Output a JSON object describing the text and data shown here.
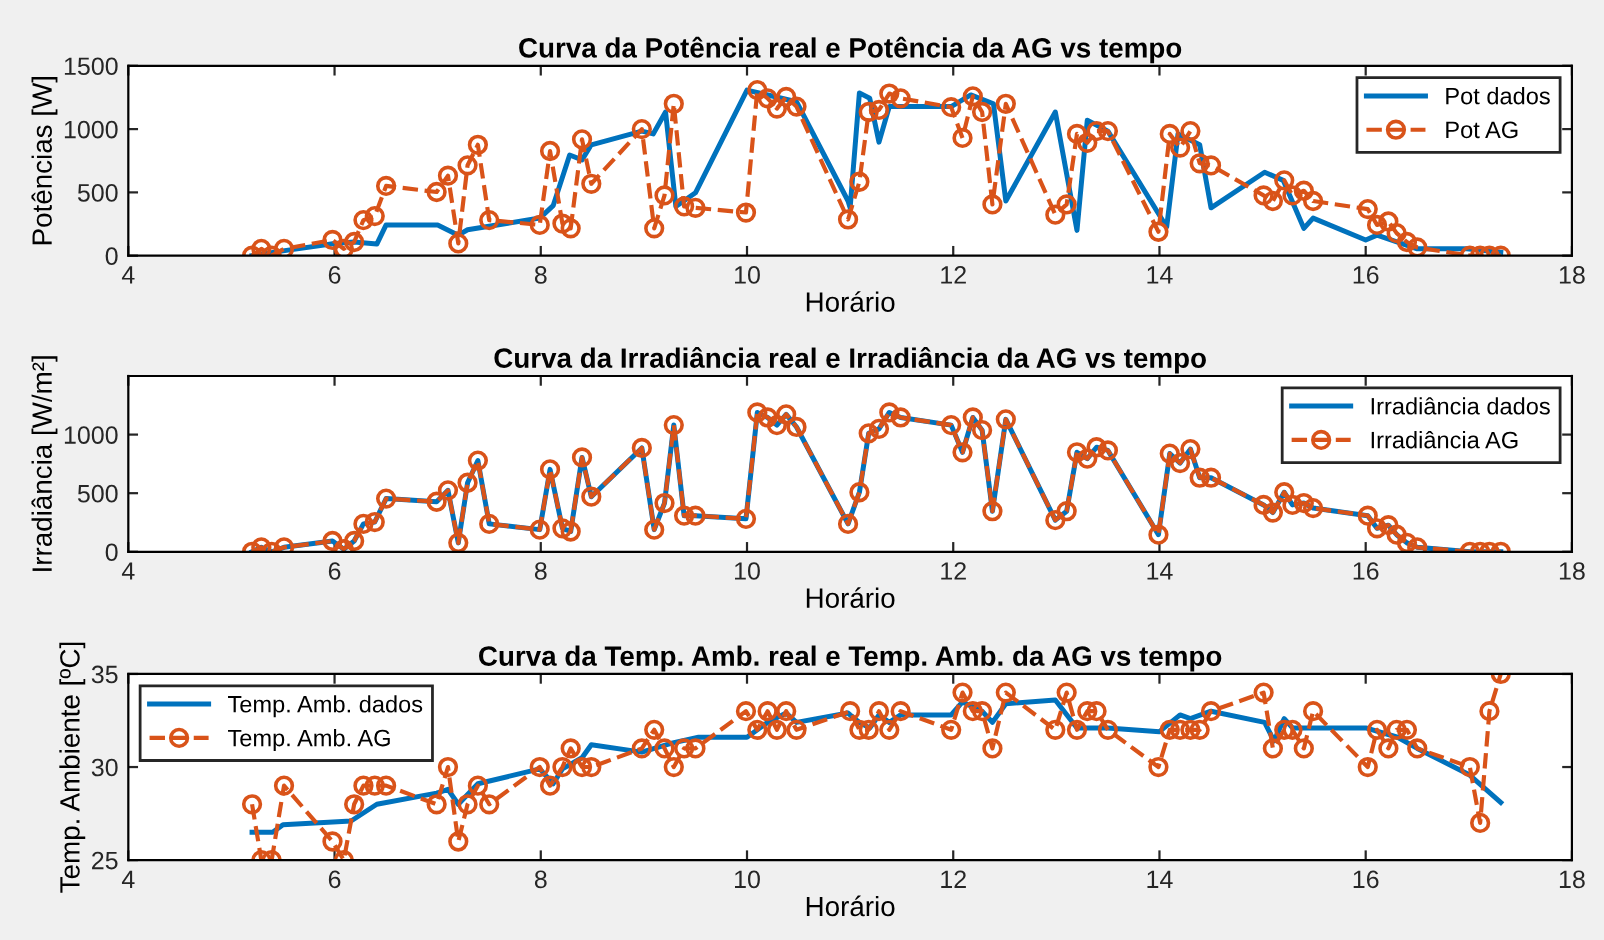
{
  "chart_data": [
    {
      "type": "line",
      "title": "Curva da Potência real e Potência da AG vs tempo",
      "xlabel": "Horário",
      "ylabel": "Potências [W]",
      "xlim": [
        4,
        18
      ],
      "xticks": [
        4,
        6,
        8,
        10,
        12,
        14,
        16,
        18
      ],
      "ylim": [
        0,
        1500
      ],
      "yticks": [
        0,
        500,
        1000,
        1500
      ],
      "grid": false,
      "legend": "top right",
      "series": [
        {
          "name": "Pot dados",
          "color": "#0072bd",
          "line_style": "solid",
          "marker": "none",
          "x": [
            5.2,
            5.5,
            6.0,
            6.19,
            6.41,
            6.5,
            7.0,
            7.2,
            7.29,
            7.99,
            8.12,
            8.28,
            8.4,
            8.49,
            8.98,
            9.09,
            9.21,
            9.31,
            9.5,
            10.0,
            10.48,
            10.98,
            11.0,
            11.09,
            11.19,
            11.28,
            11.38,
            11.98,
            12.17,
            12.39,
            12.51,
            12.99,
            13.2,
            13.3,
            13.5,
            14.07,
            14.18,
            14.39,
            14.5,
            15.02,
            15.2,
            15.4,
            15.49,
            16.0,
            16.11,
            16.5,
            16.98,
            17.31
          ],
          "values": [
            0,
            38,
            97,
            108,
            92,
            243,
            243,
            162,
            205,
            297,
            395,
            795,
            757,
            876,
            984,
            962,
            1135,
            389,
            497,
            1308,
            1216,
            432,
            378,
            1286,
            1243,
            897,
            1178,
            1178,
            1270,
            1200,
            432,
            1135,
            200,
            1070,
            984,
            227,
            962,
            876,
            378,
            659,
            595,
            216,
            297,
            124,
            162,
            54,
            54,
            27
          ]
        },
        {
          "name": "Pot AG",
          "color": "#d95319",
          "line_style": "dashed",
          "marker": "circle",
          "x": [
            5.2,
            5.29,
            5.39,
            5.51,
            5.98,
            6.09,
            6.19,
            6.28,
            6.39,
            6.5,
            6.99,
            7.1,
            7.2,
            7.29,
            7.39,
            7.5,
            7.99,
            8.09,
            8.21,
            8.29,
            8.4,
            8.49,
            8.98,
            9.1,
            9.2,
            9.29,
            9.39,
            9.5,
            9.99,
            10.1,
            10.2,
            10.29,
            10.38,
            10.48,
            10.98,
            11.09,
            11.18,
            11.28,
            11.38,
            11.49,
            11.98,
            12.09,
            12.19,
            12.28,
            12.38,
            12.51,
            12.99,
            13.1,
            13.2,
            13.3,
            13.39,
            13.5,
            13.99,
            14.1,
            14.2,
            14.3,
            14.39,
            14.5,
            15.01,
            15.1,
            15.21,
            15.29,
            15.4,
            15.49,
            16.02,
            16.11,
            16.22,
            16.3,
            16.4,
            16.5,
            17.01,
            17.11,
            17.2,
            17.31
          ],
          "values": [
            0,
            54,
            0,
            54,
            124,
            54,
            108,
            281,
            313,
            551,
            503,
            632,
            97,
            714,
            876,
            281,
            243,
            827,
            254,
            216,
            919,
            568,
            1000,
            216,
            476,
            1200,
            389,
            378,
            341,
            1308,
            1243,
            1162,
            1254,
            1178,
            286,
            584,
            1135,
            1151,
            1281,
            1243,
            1173,
            930,
            1259,
            1135,
            405,
            1200,
            324,
            405,
            962,
            892,
            984,
            984,
            189,
            962,
            854,
            984,
            730,
            713,
            476,
            432,
            595,
            476,
            513,
            432,
            368,
            243,
            270,
            178,
            108,
            65,
            0,
            0,
            0,
            0
          ]
        }
      ]
    },
    {
      "type": "line",
      "title": "Curva da Irradiância real e Irradiância da AG vs tempo",
      "xlabel": "Horário",
      "ylabel": "Irradiância [W/m²]",
      "xlim": [
        4,
        18
      ],
      "xticks": [
        4,
        6,
        8,
        10,
        12,
        14,
        16,
        18
      ],
      "ylim": [
        0,
        1500
      ],
      "yticks": [
        0,
        500,
        1000
      ],
      "grid": false,
      "legend": "top right",
      "series": [
        {
          "name": "Irradiância dados",
          "color": "#0072bd",
          "line_style": "solid",
          "marker": "none",
          "x": [
            5.2,
            5.29,
            5.39,
            5.51,
            5.98,
            6.09,
            6.19,
            6.28,
            6.39,
            6.5,
            6.99,
            7.1,
            7.2,
            7.29,
            7.39,
            7.5,
            7.99,
            8.09,
            8.21,
            8.29,
            8.4,
            8.49,
            8.98,
            9.1,
            9.2,
            9.29,
            9.39,
            9.5,
            9.99,
            10.1,
            10.2,
            10.29,
            10.38,
            10.48,
            10.98,
            11.09,
            11.18,
            11.28,
            11.38,
            11.49,
            11.98,
            12.09,
            12.19,
            12.28,
            12.38,
            12.51,
            12.99,
            13.1,
            13.2,
            13.3,
            13.39,
            13.5,
            13.99,
            14.1,
            14.2,
            14.3,
            14.39,
            14.5,
            15.01,
            15.1,
            15.21,
            15.29,
            15.4,
            15.49,
            16.02,
            16.11,
            16.22,
            16.3,
            16.4,
            16.5,
            17.01,
            17.11,
            17.2,
            17.31
          ],
          "values": [
            0,
            38,
            0,
            38,
            92,
            22,
            92,
            238,
            254,
            454,
            427,
            524,
            76,
            589,
            778,
            238,
            189,
            703,
            200,
            173,
            805,
            470,
            886,
            189,
            416,
            1081,
            308,
            308,
            281,
            1189,
            1146,
            1081,
            1173,
            1065,
            238,
            508,
            1011,
            1049,
            1189,
            1146,
            1081,
            849,
            1146,
            1038,
            346,
            1130,
            270,
            346,
            849,
            795,
            892,
            865,
            146,
            838,
            757,
            876,
            632,
            632,
            400,
            335,
            508,
            400,
            416,
            373,
            308,
            200,
            227,
            146,
            76,
            38,
            0,
            0,
            0,
            0
          ]
        },
        {
          "name": "Irradiância AG",
          "color": "#d95319",
          "line_style": "dashed",
          "marker": "circle",
          "x": [
            5.2,
            5.29,
            5.39,
            5.51,
            5.98,
            6.09,
            6.19,
            6.28,
            6.39,
            6.5,
            6.99,
            7.1,
            7.2,
            7.29,
            7.39,
            7.5,
            7.99,
            8.09,
            8.21,
            8.29,
            8.4,
            8.49,
            8.98,
            9.1,
            9.2,
            9.29,
            9.39,
            9.5,
            9.99,
            10.1,
            10.2,
            10.29,
            10.38,
            10.48,
            10.98,
            11.09,
            11.18,
            11.28,
            11.38,
            11.49,
            11.98,
            12.09,
            12.19,
            12.28,
            12.38,
            12.51,
            12.99,
            13.1,
            13.2,
            13.3,
            13.39,
            13.5,
            13.99,
            14.1,
            14.2,
            14.3,
            14.39,
            14.5,
            15.01,
            15.1,
            15.21,
            15.29,
            15.4,
            15.49,
            16.02,
            16.11,
            16.22,
            16.3,
            16.4,
            16.5,
            17.01,
            17.11,
            17.2,
            17.31
          ],
          "values": [
            0,
            38,
            0,
            38,
            92,
            22,
            92,
            238,
            254,
            454,
            427,
            524,
            76,
            589,
            778,
            238,
            189,
            703,
            200,
            173,
            805,
            470,
            886,
            189,
            416,
            1081,
            308,
            308,
            281,
            1189,
            1146,
            1081,
            1173,
            1065,
            238,
            508,
            1011,
            1049,
            1189,
            1146,
            1081,
            849,
            1146,
            1038,
            346,
            1130,
            270,
            346,
            849,
            795,
            892,
            865,
            146,
            838,
            757,
            876,
            632,
            632,
            400,
            335,
            508,
            400,
            416,
            373,
            308,
            200,
            227,
            146,
            76,
            38,
            0,
            0,
            0,
            0
          ]
        }
      ]
    },
    {
      "type": "line",
      "title": "Curva da Temp. Amb. real e Temp. Amb. da AG vs tempo",
      "xlabel": "Horário",
      "ylabel": "Temp. Ambiente [ºC]",
      "xlim": [
        4,
        18
      ],
      "xticks": [
        4,
        6,
        8,
        10,
        12,
        14,
        16,
        18
      ],
      "ylim": [
        25,
        35
      ],
      "yticks": [
        25,
        30,
        35
      ],
      "grid": false,
      "legend": "top left",
      "series": [
        {
          "name": "Temp. Amb. dados",
          "color": "#0072bd",
          "line_style": "solid",
          "marker": "none",
          "x": [
            5.2,
            5.4,
            5.5,
            6.16,
            6.41,
            6.99,
            7.1,
            7.2,
            7.39,
            7.99,
            8.12,
            8.21,
            8.4,
            8.49,
            8.98,
            9.28,
            9.53,
            10.0,
            10.2,
            10.38,
            10.48,
            10.98,
            11.0,
            11.09,
            11.19,
            11.28,
            11.38,
            11.49,
            11.98,
            12.09,
            12.28,
            12.38,
            12.51,
            12.99,
            13.2,
            13.5,
            14.0,
            14.2,
            14.3,
            14.5,
            15.02,
            15.11,
            15.21,
            15.29,
            16.0,
            16.31,
            16.5,
            17.0,
            17.31
          ],
          "values": [
            26.5,
            26.5,
            26.9,
            27.1,
            28.0,
            28.6,
            28.8,
            28.0,
            29.1,
            29.9,
            29.1,
            29.9,
            30.5,
            31.2,
            30.8,
            31.3,
            31.6,
            31.6,
            32.4,
            32.9,
            32.4,
            32.9,
            32.8,
            32.4,
            32.1,
            32.8,
            32.4,
            32.8,
            32.8,
            33.5,
            33.0,
            32.4,
            33.4,
            33.6,
            32.1,
            32.1,
            31.9,
            32.8,
            32.6,
            33.0,
            32.4,
            31.4,
            32.6,
            32.1,
            32.1,
            31.6,
            31.0,
            29.6,
            28.1
          ]
        },
        {
          "name": "Temp. Amb. AG",
          "color": "#d95319",
          "line_style": "dashed",
          "marker": "circle",
          "x": [
            5.2,
            5.29,
            5.39,
            5.51,
            5.98,
            6.09,
            6.19,
            6.28,
            6.39,
            6.5,
            6.99,
            7.1,
            7.2,
            7.29,
            7.39,
            7.5,
            7.99,
            8.09,
            8.21,
            8.29,
            8.4,
            8.49,
            8.98,
            9.1,
            9.2,
            9.29,
            9.39,
            9.5,
            9.99,
            10.1,
            10.2,
            10.29,
            10.38,
            10.48,
            11.0,
            11.09,
            11.18,
            11.28,
            11.38,
            11.49,
            11.98,
            12.09,
            12.19,
            12.28,
            12.38,
            12.51,
            12.99,
            13.1,
            13.2,
            13.3,
            13.39,
            13.5,
            13.99,
            14.1,
            14.2,
            14.3,
            14.39,
            14.5,
            15.01,
            15.1,
            15.21,
            15.29,
            15.4,
            15.49,
            16.02,
            16.11,
            16.22,
            16.3,
            16.4,
            16.5,
            17.01,
            17.11,
            17.2,
            17.31
          ],
          "values": [
            28,
            25,
            25,
            29,
            26,
            25,
            28,
            29,
            29,
            29,
            28,
            30,
            26,
            28,
            29,
            28,
            30,
            29,
            30,
            31,
            30,
            30,
            31,
            32,
            31,
            30,
            31,
            31,
            33,
            32,
            33,
            32,
            33,
            32,
            33,
            32,
            32,
            33,
            32,
            33,
            32,
            34,
            33,
            33,
            31,
            34,
            32,
            34,
            32,
            33,
            33,
            32,
            30,
            32,
            32,
            32,
            32,
            33,
            34,
            31,
            32,
            32,
            31,
            33,
            30,
            32,
            31,
            32,
            32,
            31,
            30,
            27,
            33,
            35
          ]
        }
      ]
    }
  ]
}
